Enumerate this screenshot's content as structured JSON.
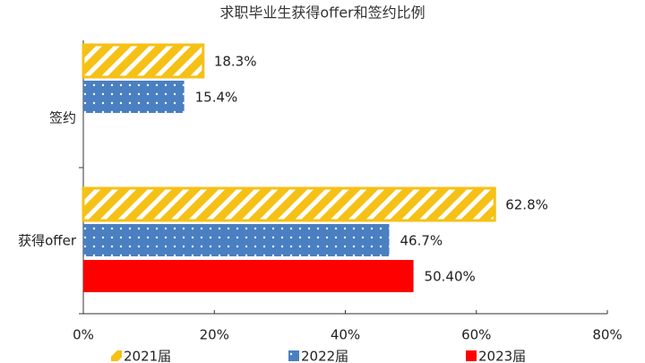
{
  "chart_data": {
    "type": "barh",
    "title": "求职毕业生获得offer和签约比例",
    "categories": [
      "签约",
      "获得offer"
    ],
    "series": [
      {
        "name": "2021届",
        "color": "#f5c116",
        "pattern": "hatch",
        "values": [
          18.3,
          62.8
        ],
        "value_labels": [
          "18.3%",
          "62.8%"
        ]
      },
      {
        "name": "2022届",
        "color": "#4a7fc1",
        "pattern": "dots",
        "values": [
          15.4,
          46.7
        ],
        "value_labels": [
          "15.4%",
          "46.7%"
        ]
      },
      {
        "name": "2023届",
        "color": "#ff0000",
        "values": [
          null,
          50.4
        ],
        "value_labels": [
          null,
          "50.40%"
        ]
      }
    ],
    "xlim": [
      0,
      80
    ],
    "xticks": [
      {
        "value": 0,
        "label": "0%"
      },
      {
        "value": 20,
        "label": "20%"
      },
      {
        "value": 40,
        "label": "40%"
      },
      {
        "value": 60,
        "label": "60%"
      },
      {
        "value": 80,
        "label": "80%"
      }
    ],
    "legend": "bottom"
  }
}
